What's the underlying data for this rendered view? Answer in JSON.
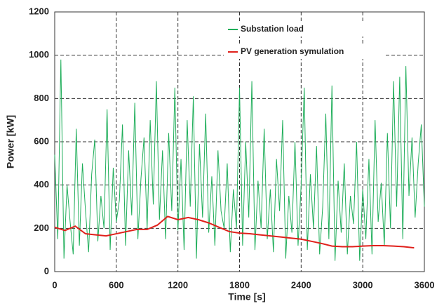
{
  "chart_data": {
    "type": "line",
    "xlabel": "Time [s]",
    "ylabel": "Power [kW]",
    "xlim": [
      0,
      3600
    ],
    "xticks": [
      0,
      600,
      1200,
      1800,
      2400,
      3000,
      3600
    ],
    "ylim": [
      0,
      1200
    ],
    "yticks": [
      0,
      200,
      400,
      600,
      800,
      1000,
      1200
    ],
    "grid": true,
    "legend": "upper right",
    "series": [
      {
        "name": "Substation load",
        "color": "#1fae5a",
        "x": [
          0,
          30,
          60,
          90,
          120,
          150,
          180,
          210,
          240,
          270,
          300,
          330,
          360,
          390,
          420,
          450,
          480,
          510,
          540,
          570,
          600,
          630,
          660,
          690,
          720,
          750,
          780,
          810,
          840,
          870,
          900,
          930,
          960,
          990,
          1020,
          1050,
          1080,
          1110,
          1140,
          1170,
          1200,
          1230,
          1260,
          1290,
          1320,
          1350,
          1380,
          1410,
          1440,
          1470,
          1500,
          1530,
          1560,
          1590,
          1620,
          1650,
          1680,
          1710,
          1740,
          1770,
          1800,
          1830,
          1860,
          1890,
          1920,
          1950,
          1980,
          2010,
          2040,
          2070,
          2100,
          2130,
          2160,
          2190,
          2220,
          2250,
          2280,
          2310,
          2340,
          2370,
          2400,
          2430,
          2460,
          2490,
          2520,
          2550,
          2580,
          2610,
          2640,
          2670,
          2700,
          2730,
          2760,
          2790,
          2820,
          2850,
          2880,
          2910,
          2940,
          2970,
          3000,
          3030,
          3060,
          3090,
          3120,
          3150,
          3180,
          3210,
          3240,
          3270,
          3300,
          3330,
          3360,
          3390,
          3420,
          3450,
          3480,
          3510,
          3540,
          3570,
          3600
        ],
        "values": [
          540,
          150,
          980,
          60,
          400,
          230,
          80,
          660,
          120,
          500,
          280,
          90,
          450,
          610,
          140,
          350,
          200,
          750,
          100,
          480,
          230,
          330,
          680,
          120,
          560,
          260,
          780,
          150,
          430,
          620,
          200,
          700,
          310,
          880,
          240,
          560,
          150,
          640,
          280,
          850,
          190,
          520,
          100,
          700,
          300,
          810,
          60,
          590,
          250,
          730,
          180,
          440,
          120,
          560,
          280,
          200,
          500,
          90,
          380,
          200,
          850,
          120,
          600,
          250,
          880,
          100,
          420,
          200,
          660,
          150,
          380,
          90,
          520,
          280,
          700,
          60,
          350,
          180,
          600,
          120,
          400,
          850,
          100,
          450,
          200,
          580,
          80,
          300,
          730,
          150,
          860,
          50,
          420,
          180,
          500,
          80,
          350,
          220,
          600,
          50,
          380,
          150,
          520,
          80,
          700,
          230,
          410,
          120,
          640,
          200,
          880,
          300,
          900,
          150,
          950,
          350,
          620,
          250,
          500,
          680,
          300
        ]
      },
      {
        "name": "PV generation symulation",
        "color": "#e0201b",
        "x": [
          0,
          100,
          200,
          300,
          400,
          500,
          600,
          700,
          800,
          900,
          1000,
          1100,
          1200,
          1300,
          1400,
          1500,
          1600,
          1700,
          1800,
          1900,
          2000,
          2100,
          2200,
          2300,
          2400,
          2500,
          2600,
          2700,
          2800,
          2900,
          3000,
          3100,
          3200,
          3300,
          3400,
          3500
        ],
        "values": [
          205,
          190,
          210,
          175,
          170,
          165,
          175,
          185,
          195,
          195,
          215,
          255,
          240,
          250,
          240,
          225,
          205,
          185,
          178,
          175,
          170,
          165,
          160,
          155,
          150,
          140,
          130,
          118,
          115,
          115,
          118,
          120,
          120,
          118,
          115,
          110
        ]
      }
    ]
  }
}
